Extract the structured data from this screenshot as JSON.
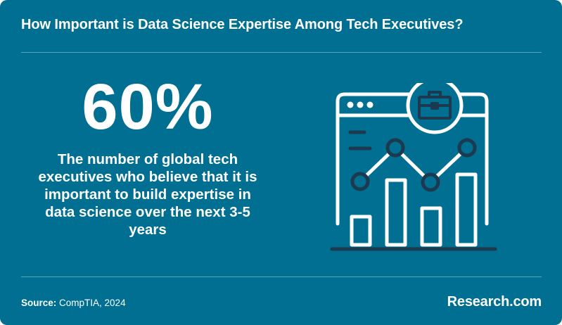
{
  "header": {
    "title": "How Important is Data Science Expertise Among Tech Executives?"
  },
  "stat": {
    "value": "60%",
    "description": "The number of global tech executives who believe that it is important to build expertise in data science over the next 3-5 years"
  },
  "illustration": {
    "icon": "browser-window-chart-briefcase-icon"
  },
  "footer": {
    "source_label": "Source:",
    "source_value": "CompTIA, 2024",
    "brand": "Research.com"
  },
  "colors": {
    "background": "#006f91",
    "text": "#ffffff",
    "icon_stroke": "#1b3a4f",
    "icon_fill": "#ffffff"
  }
}
